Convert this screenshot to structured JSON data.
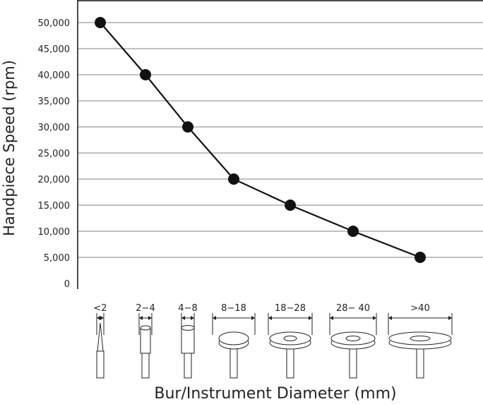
{
  "chart_data": {
    "type": "line",
    "title": "",
    "xlabel": "Bur/Instrument Diameter (mm)",
    "ylabel": "Handpiece Speed (rpm)",
    "categories": [
      "<2",
      "2−4",
      "4−8",
      "8−18",
      "18−28",
      "28− 40",
      ">40"
    ],
    "values": [
      50000,
      40000,
      30000,
      20000,
      15000,
      10000,
      5000
    ],
    "ylim": [
      0,
      55000
    ],
    "yticks": [
      0,
      5000,
      10000,
      15000,
      20000,
      25000,
      30000,
      35000,
      40000,
      45000,
      50000
    ],
    "ytick_labels": [
      "0",
      "5,000",
      "10,000",
      "15,000",
      "20,000",
      "25,000",
      "30,000",
      "35,000",
      "40,000",
      "45,000",
      "50,000"
    ],
    "grid": true,
    "legend": "none",
    "colors": {
      "line": "#111111",
      "grid": "#9a9a9a",
      "marker": "#111111"
    },
    "icons": [
      "thin-bur-icon",
      "small-cylinder-bur-icon",
      "cylinder-bur-icon",
      "small-disc-icon",
      "disc-icon",
      "disc-icon",
      "large-disc-icon"
    ]
  }
}
